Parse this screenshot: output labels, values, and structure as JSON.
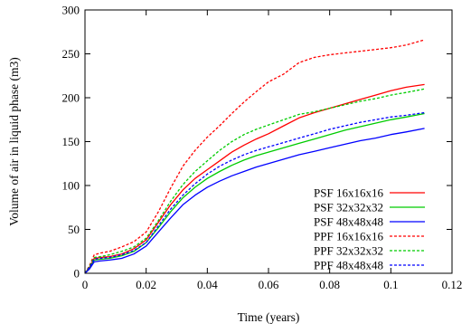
{
  "chart_data": {
    "type": "line",
    "title": "",
    "xlabel": "Time (years)",
    "ylabel": "Volume of air in liquid phase (m3)",
    "xlim": [
      0,
      0.12
    ],
    "ylim": [
      0,
      300
    ],
    "x_ticks": [
      0,
      0.02,
      0.04,
      0.06,
      0.08,
      0.1,
      0.12
    ],
    "x_tick_labels": [
      "0",
      "0.02",
      "0.04",
      "0.06",
      "0.08",
      "0.1",
      "0.12"
    ],
    "y_ticks": [
      0,
      50,
      100,
      150,
      200,
      250,
      300
    ],
    "y_tick_labels": [
      "0",
      "50",
      "100",
      "150",
      "200",
      "250",
      "300"
    ],
    "grid": false,
    "legend_position": "bottom-right",
    "series": [
      {
        "name": "PSF 16x16x16",
        "color": "#ff0000",
        "dash": "solid",
        "x": [
          0,
          0.0015,
          0.003,
          0.005,
          0.008,
          0.012,
          0.016,
          0.02,
          0.024,
          0.028,
          0.032,
          0.036,
          0.04,
          0.044,
          0.048,
          0.052,
          0.056,
          0.06,
          0.065,
          0.07,
          0.075,
          0.08,
          0.085,
          0.09,
          0.095,
          0.1,
          0.105,
          0.111
        ],
        "y": [
          0,
          7,
          17,
          18,
          19,
          22,
          28,
          38,
          58,
          78,
          95,
          108,
          118,
          128,
          138,
          146,
          153,
          159,
          168,
          177,
          183,
          188,
          193,
          198,
          203,
          208,
          212,
          215
        ]
      },
      {
        "name": "PSF 32x32x32",
        "color": "#00cc00",
        "dash": "solid",
        "x": [
          0,
          0.0015,
          0.003,
          0.005,
          0.008,
          0.012,
          0.016,
          0.02,
          0.024,
          0.028,
          0.032,
          0.036,
          0.04,
          0.044,
          0.048,
          0.052,
          0.056,
          0.06,
          0.065,
          0.07,
          0.075,
          0.08,
          0.085,
          0.09,
          0.095,
          0.1,
          0.105,
          0.111
        ],
        "y": [
          0,
          6,
          15,
          16,
          17,
          20,
          25,
          35,
          52,
          70,
          86,
          98,
          108,
          116,
          123,
          129,
          134,
          138,
          143,
          148,
          153,
          158,
          163,
          167,
          171,
          175,
          178,
          182
        ]
      },
      {
        "name": "PSF 48x48x48",
        "color": "#0000ff",
        "dash": "solid",
        "x": [
          0,
          0.0015,
          0.003,
          0.005,
          0.008,
          0.012,
          0.016,
          0.02,
          0.024,
          0.028,
          0.032,
          0.036,
          0.04,
          0.044,
          0.048,
          0.052,
          0.056,
          0.06,
          0.065,
          0.07,
          0.075,
          0.08,
          0.085,
          0.09,
          0.095,
          0.1,
          0.105,
          0.111
        ],
        "y": [
          0,
          5,
          13,
          14,
          15,
          17,
          22,
          31,
          47,
          63,
          78,
          89,
          98,
          105,
          111,
          116,
          121,
          125,
          130,
          135,
          139,
          143,
          147,
          151,
          154,
          158,
          161,
          165
        ]
      },
      {
        "name": "PPF 16x16x16",
        "color": "#ff0000",
        "dash": "dotted",
        "x": [
          0,
          0.0015,
          0.003,
          0.005,
          0.008,
          0.012,
          0.016,
          0.02,
          0.024,
          0.028,
          0.032,
          0.036,
          0.04,
          0.044,
          0.048,
          0.052,
          0.056,
          0.06,
          0.065,
          0.07,
          0.075,
          0.08,
          0.085,
          0.09,
          0.095,
          0.1,
          0.105,
          0.111
        ],
        "y": [
          0,
          9,
          21,
          23,
          25,
          30,
          36,
          47,
          70,
          97,
          122,
          140,
          155,
          168,
          182,
          195,
          207,
          218,
          227,
          240,
          246,
          249,
          251,
          253,
          255,
          257,
          260,
          266
        ]
      },
      {
        "name": "PPF 32x32x32",
        "color": "#00cc00",
        "dash": "dotted",
        "x": [
          0,
          0.0015,
          0.003,
          0.005,
          0.008,
          0.012,
          0.016,
          0.02,
          0.024,
          0.028,
          0.032,
          0.036,
          0.04,
          0.044,
          0.048,
          0.052,
          0.056,
          0.06,
          0.065,
          0.07,
          0.075,
          0.08,
          0.085,
          0.09,
          0.095,
          0.1,
          0.105,
          0.111
        ],
        "y": [
          0,
          8,
          18,
          19,
          21,
          25,
          30,
          40,
          60,
          82,
          101,
          116,
          128,
          140,
          150,
          158,
          164,
          169,
          175,
          181,
          184,
          188,
          192,
          196,
          199,
          203,
          206,
          210
        ]
      },
      {
        "name": "PPF 48x48x48",
        "color": "#0000ff",
        "dash": "dotted",
        "x": [
          0,
          0.0015,
          0.003,
          0.005,
          0.008,
          0.012,
          0.016,
          0.02,
          0.024,
          0.028,
          0.032,
          0.036,
          0.04,
          0.044,
          0.048,
          0.052,
          0.056,
          0.06,
          0.065,
          0.07,
          0.075,
          0.08,
          0.085,
          0.09,
          0.095,
          0.1,
          0.105,
          0.111
        ],
        "y": [
          0,
          7,
          16,
          17,
          18,
          21,
          26,
          35,
          54,
          73,
          89,
          102,
          113,
          122,
          129,
          135,
          140,
          144,
          149,
          154,
          159,
          164,
          168,
          172,
          175,
          178,
          180,
          183
        ]
      }
    ]
  }
}
